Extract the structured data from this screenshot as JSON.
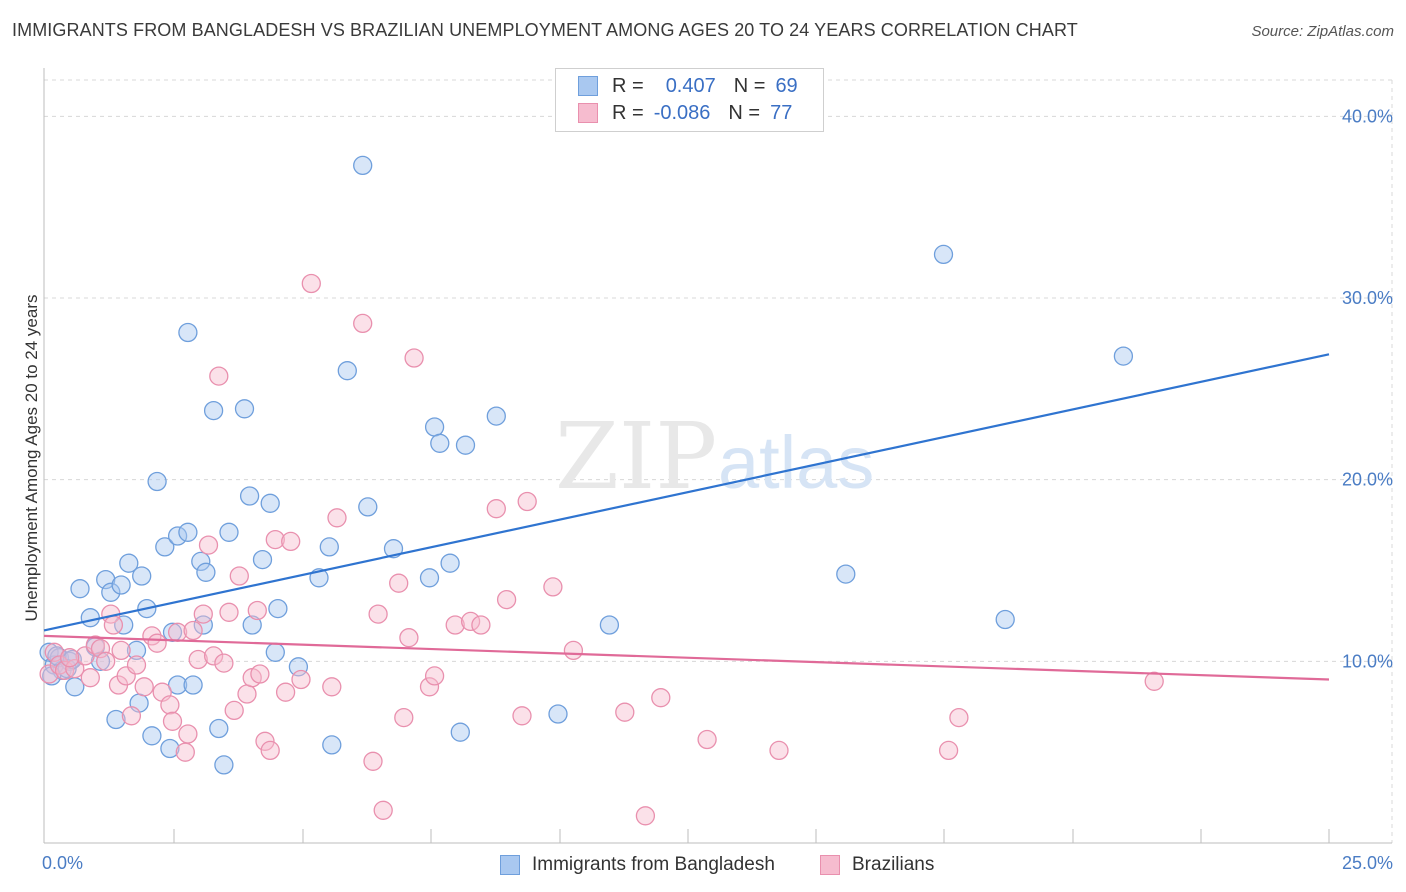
{
  "header": {
    "title": "IMMIGRANTS FROM BANGLADESH VS BRAZILIAN UNEMPLOYMENT AMONG AGES 20 TO 24 YEARS CORRELATION CHART",
    "source": "Source: ZipAtlas.com"
  },
  "watermark": {
    "zip": "ZIP",
    "atlas": "atlas"
  },
  "legend": {
    "rows": [
      {
        "r_label": "R =",
        "r_value": "0.407",
        "n_label": "N =",
        "n_value": "69"
      },
      {
        "r_label": "R =",
        "r_value": "-0.086",
        "n_label": "N =",
        "n_value": "77"
      }
    ]
  },
  "colors": {
    "blue_fill": "#a9c8f0",
    "blue_stroke": "#6f9fdc",
    "blue_line": "#2f74d0",
    "pink_fill": "#f6bccf",
    "pink_stroke": "#e990ae",
    "pink_line": "#e06a98",
    "grid": "#d8d8d8",
    "tick_text": "#4a7cc4"
  },
  "chart_data": {
    "type": "scatter",
    "title": "IMMIGRANTS FROM BANGLADESH VS BRAZILIAN UNEMPLOYMENT AMONG AGES 20 TO 24 YEARS CORRELATION CHART",
    "xlabel": "",
    "ylabel": "Unemployment Among Ages 20 to 24 years",
    "xlim": [
      0,
      25
    ],
    "ylim": [
      0,
      42
    ],
    "x_tick_labels": [
      "0.0%",
      "25.0%"
    ],
    "y_ticks": [
      10,
      20,
      30,
      40
    ],
    "y_tick_labels": [
      "10.0%",
      "20.0%",
      "30.0%",
      "40.0%"
    ],
    "grid": true,
    "legend_position": "bottom-center",
    "series": [
      {
        "name": "Immigrants from Bangladesh",
        "r": 0.407,
        "n": 69,
        "trend": {
          "x": [
            0,
            25
          ],
          "y": [
            11.7,
            26.9
          ]
        },
        "points": [
          [
            0.1,
            10.5
          ],
          [
            0.2,
            9.8
          ],
          [
            0.3,
            10.2
          ],
          [
            0.35,
            9.5
          ],
          [
            0.15,
            9.2
          ],
          [
            0.5,
            10.0
          ],
          [
            0.6,
            8.6
          ],
          [
            0.7,
            14.0
          ],
          [
            0.9,
            12.4
          ],
          [
            1.0,
            10.8
          ],
          [
            1.1,
            10.0
          ],
          [
            1.2,
            14.5
          ],
          [
            1.3,
            13.8
          ],
          [
            1.4,
            6.8
          ],
          [
            1.5,
            14.2
          ],
          [
            1.55,
            12.0
          ],
          [
            1.65,
            15.4
          ],
          [
            1.8,
            10.6
          ],
          [
            1.85,
            7.7
          ],
          [
            1.9,
            14.7
          ],
          [
            2.0,
            12.9
          ],
          [
            2.1,
            5.9
          ],
          [
            2.2,
            19.9
          ],
          [
            2.35,
            16.3
          ],
          [
            2.45,
            5.2
          ],
          [
            2.5,
            11.6
          ],
          [
            2.6,
            8.7
          ],
          [
            2.6,
            16.9
          ],
          [
            2.8,
            17.1
          ],
          [
            2.8,
            28.1
          ],
          [
            2.9,
            8.7
          ],
          [
            3.05,
            15.5
          ],
          [
            3.1,
            12.0
          ],
          [
            3.15,
            14.9
          ],
          [
            3.3,
            23.8
          ],
          [
            3.4,
            6.3
          ],
          [
            3.5,
            4.3
          ],
          [
            3.6,
            17.1
          ],
          [
            3.9,
            23.9
          ],
          [
            4.0,
            19.1
          ],
          [
            4.05,
            12.0
          ],
          [
            4.25,
            15.6
          ],
          [
            4.4,
            18.7
          ],
          [
            4.5,
            10.5
          ],
          [
            4.55,
            12.9
          ],
          [
            4.95,
            9.7
          ],
          [
            5.35,
            14.6
          ],
          [
            5.55,
            16.3
          ],
          [
            5.6,
            5.4
          ],
          [
            5.9,
            26.0
          ],
          [
            6.3,
            18.5
          ],
          [
            6.2,
            37.3
          ],
          [
            6.8,
            16.2
          ],
          [
            7.5,
            14.6
          ],
          [
            7.6,
            22.9
          ],
          [
            7.7,
            22.0
          ],
          [
            7.9,
            15.4
          ],
          [
            8.1,
            6.1
          ],
          [
            8.2,
            21.9
          ],
          [
            8.8,
            23.5
          ],
          [
            10.0,
            7.1
          ],
          [
            11.0,
            12.0
          ],
          [
            15.6,
            14.8
          ],
          [
            17.5,
            32.4
          ],
          [
            18.7,
            12.3
          ],
          [
            21.0,
            26.8
          ],
          [
            0.25,
            10.3
          ],
          [
            0.45,
            9.6
          ],
          [
            0.55,
            10.1
          ]
        ]
      },
      {
        "name": "Brazilians",
        "r": -0.086,
        "n": 77,
        "trend": {
          "x": [
            0,
            25
          ],
          "y": [
            11.4,
            9.0
          ]
        },
        "points": [
          [
            0.1,
            9.3
          ],
          [
            0.2,
            10.5
          ],
          [
            0.3,
            9.8
          ],
          [
            0.4,
            9.5
          ],
          [
            0.6,
            9.6
          ],
          [
            0.8,
            10.3
          ],
          [
            0.9,
            9.1
          ],
          [
            1.0,
            10.9
          ],
          [
            1.1,
            10.7
          ],
          [
            1.2,
            10.0
          ],
          [
            1.3,
            12.6
          ],
          [
            1.35,
            12.0
          ],
          [
            1.45,
            8.7
          ],
          [
            1.5,
            10.6
          ],
          [
            1.6,
            9.2
          ],
          [
            1.7,
            7.0
          ],
          [
            1.8,
            9.8
          ],
          [
            1.95,
            8.6
          ],
          [
            2.1,
            11.4
          ],
          [
            2.2,
            11.0
          ],
          [
            2.3,
            8.3
          ],
          [
            2.45,
            7.6
          ],
          [
            2.5,
            6.7
          ],
          [
            2.6,
            11.6
          ],
          [
            2.75,
            5.0
          ],
          [
            2.8,
            6.0
          ],
          [
            2.9,
            11.7
          ],
          [
            3.0,
            10.1
          ],
          [
            3.1,
            12.6
          ],
          [
            3.2,
            16.4
          ],
          [
            3.3,
            10.3
          ],
          [
            3.4,
            25.7
          ],
          [
            3.5,
            9.9
          ],
          [
            3.6,
            12.7
          ],
          [
            3.7,
            7.3
          ],
          [
            3.8,
            14.7
          ],
          [
            3.95,
            8.2
          ],
          [
            4.05,
            9.1
          ],
          [
            4.15,
            12.8
          ],
          [
            4.2,
            9.3
          ],
          [
            4.3,
            5.6
          ],
          [
            4.4,
            5.1
          ],
          [
            4.5,
            16.7
          ],
          [
            4.7,
            8.3
          ],
          [
            4.8,
            16.6
          ],
          [
            5.0,
            9.0
          ],
          [
            5.2,
            30.8
          ],
          [
            5.6,
            8.6
          ],
          [
            5.7,
            17.9
          ],
          [
            6.2,
            28.6
          ],
          [
            6.4,
            4.5
          ],
          [
            6.5,
            12.6
          ],
          [
            6.6,
            1.8
          ],
          [
            6.9,
            14.3
          ],
          [
            7.0,
            6.9
          ],
          [
            7.1,
            11.3
          ],
          [
            7.2,
            26.7
          ],
          [
            7.5,
            8.6
          ],
          [
            7.6,
            9.2
          ],
          [
            8.0,
            12.0
          ],
          [
            8.3,
            12.2
          ],
          [
            8.5,
            12.0
          ],
          [
            8.8,
            18.4
          ],
          [
            9.0,
            13.4
          ],
          [
            9.3,
            7.0
          ],
          [
            9.4,
            18.8
          ],
          [
            9.9,
            14.1
          ],
          [
            10.3,
            10.6
          ],
          [
            11.3,
            7.2
          ],
          [
            11.7,
            1.5
          ],
          [
            12.0,
            8.0
          ],
          [
            12.9,
            5.7
          ],
          [
            14.3,
            5.1
          ],
          [
            17.6,
            5.1
          ],
          [
            17.8,
            6.9
          ],
          [
            21.6,
            8.9
          ],
          [
            0.5,
            10.2
          ]
        ]
      }
    ]
  }
}
